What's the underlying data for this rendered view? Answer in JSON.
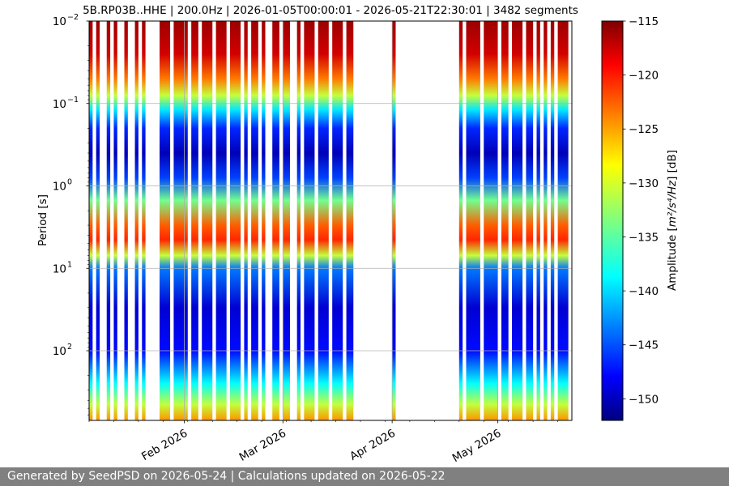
{
  "chart_data": {
    "type": "heatmap",
    "title": "5B.RP03B..HHE | 200.0Hz | 2026-01-05T00:00:01 - 2026-05-21T22:30:01 | 3482 segments",
    "xlabel": "",
    "ylabel": "Period [s]",
    "x_range": [
      "2026-01-05",
      "2026-05-21"
    ],
    "x_ticks": [
      {
        "date": "2026-02-01",
        "label": "Feb 2026"
      },
      {
        "date": "2026-03-01",
        "label": "Mar 2026"
      },
      {
        "date": "2026-04-01",
        "label": "Apr 2026"
      },
      {
        "date": "2026-05-01",
        "label": "May 2026"
      }
    ],
    "y_scale": "log",
    "y_inverted": true,
    "y_range": [
      0.01,
      700
    ],
    "y_ticks": [
      {
        "value": 0.01,
        "base": "10",
        "exp": "−2"
      },
      {
        "value": 0.1,
        "base": "10",
        "exp": "−1"
      },
      {
        "value": 1,
        "base": "10",
        "exp": "0"
      },
      {
        "value": 10,
        "base": "10",
        "exp": "1"
      },
      {
        "value": 100,
        "base": "10",
        "exp": "2"
      }
    ],
    "grid": true,
    "colormap": "jet",
    "colorbar": {
      "label": "Amplitude [m²/s⁴/Hz] [dB]",
      "label_prefix": "Amplitude [",
      "label_math": "m²/s⁴/Hz",
      "label_suffix": "] [dB]",
      "range": [
        -152,
        -115
      ],
      "ticks": [
        -115,
        -120,
        -125,
        -130,
        -135,
        -140,
        -145,
        -150
      ],
      "tick_labels": [
        "−115",
        "−120",
        "−125",
        "−130",
        "−135",
        "−140",
        "−145",
        "−150"
      ]
    },
    "spectrum_profile": [
      {
        "period": 0.01,
        "db": -116
      },
      {
        "period": 0.025,
        "db": -118
      },
      {
        "period": 0.05,
        "db": -124
      },
      {
        "period": 0.08,
        "db": -131
      },
      {
        "period": 0.12,
        "db": -139
      },
      {
        "period": 0.2,
        "db": -146
      },
      {
        "period": 0.4,
        "db": -150
      },
      {
        "period": 0.8,
        "db": -145
      },
      {
        "period": 1.5,
        "db": -134
      },
      {
        "period": 3,
        "db": -123
      },
      {
        "period": 4.5,
        "db": -121
      },
      {
        "period": 7,
        "db": -131
      },
      {
        "period": 10,
        "db": -143
      },
      {
        "period": 30,
        "db": -149
      },
      {
        "period": 100,
        "db": -147
      },
      {
        "period": 250,
        "db": -138
      },
      {
        "period": 450,
        "db": -131
      },
      {
        "period": 700,
        "db": -125
      }
    ],
    "data_segments": [
      [
        "2026-01-05",
        "2026-01-06"
      ],
      [
        "2026-01-07",
        "2026-01-08"
      ],
      [
        "2026-01-10",
        "2026-01-11"
      ],
      [
        "2026-01-12",
        "2026-01-13"
      ],
      [
        "2026-01-15",
        "2026-01-16"
      ],
      [
        "2026-01-18",
        "2026-01-19"
      ],
      [
        "2026-01-20",
        "2026-01-21"
      ],
      [
        "2026-01-25",
        "2026-01-28"
      ],
      [
        "2026-01-29",
        "2026-02-02"
      ],
      [
        "2026-02-03",
        "2026-02-05"
      ],
      [
        "2026-02-06",
        "2026-02-09"
      ],
      [
        "2026-02-10",
        "2026-02-13"
      ],
      [
        "2026-02-14",
        "2026-02-17"
      ],
      [
        "2026-02-18",
        "2026-02-19"
      ],
      [
        "2026-02-20",
        "2026-02-22"
      ],
      [
        "2026-02-23",
        "2026-02-24"
      ],
      [
        "2026-02-26",
        "2026-02-28"
      ],
      [
        "2026-03-01",
        "2026-03-03"
      ],
      [
        "2026-03-05",
        "2026-03-06"
      ],
      [
        "2026-03-07",
        "2026-03-10"
      ],
      [
        "2026-03-11",
        "2026-03-14"
      ],
      [
        "2026-03-15",
        "2026-03-18"
      ],
      [
        "2026-03-19",
        "2026-03-21"
      ],
      [
        "2026-04-01",
        "2026-04-02"
      ],
      [
        "2026-04-20",
        "2026-04-21"
      ],
      [
        "2026-04-22",
        "2026-04-26"
      ],
      [
        "2026-04-27",
        "2026-05-01"
      ],
      [
        "2026-05-02",
        "2026-05-04"
      ],
      [
        "2026-05-05",
        "2026-05-08"
      ],
      [
        "2026-05-09",
        "2026-05-11"
      ],
      [
        "2026-05-12",
        "2026-05-13"
      ],
      [
        "2026-05-14",
        "2026-05-15"
      ],
      [
        "2026-05-16",
        "2026-05-17"
      ],
      [
        "2026-05-18",
        "2026-05-21"
      ]
    ]
  },
  "footer": {
    "text": "Generated by SeedPSD on 2026-05-24 | Calculations updated on 2026-05-22"
  }
}
